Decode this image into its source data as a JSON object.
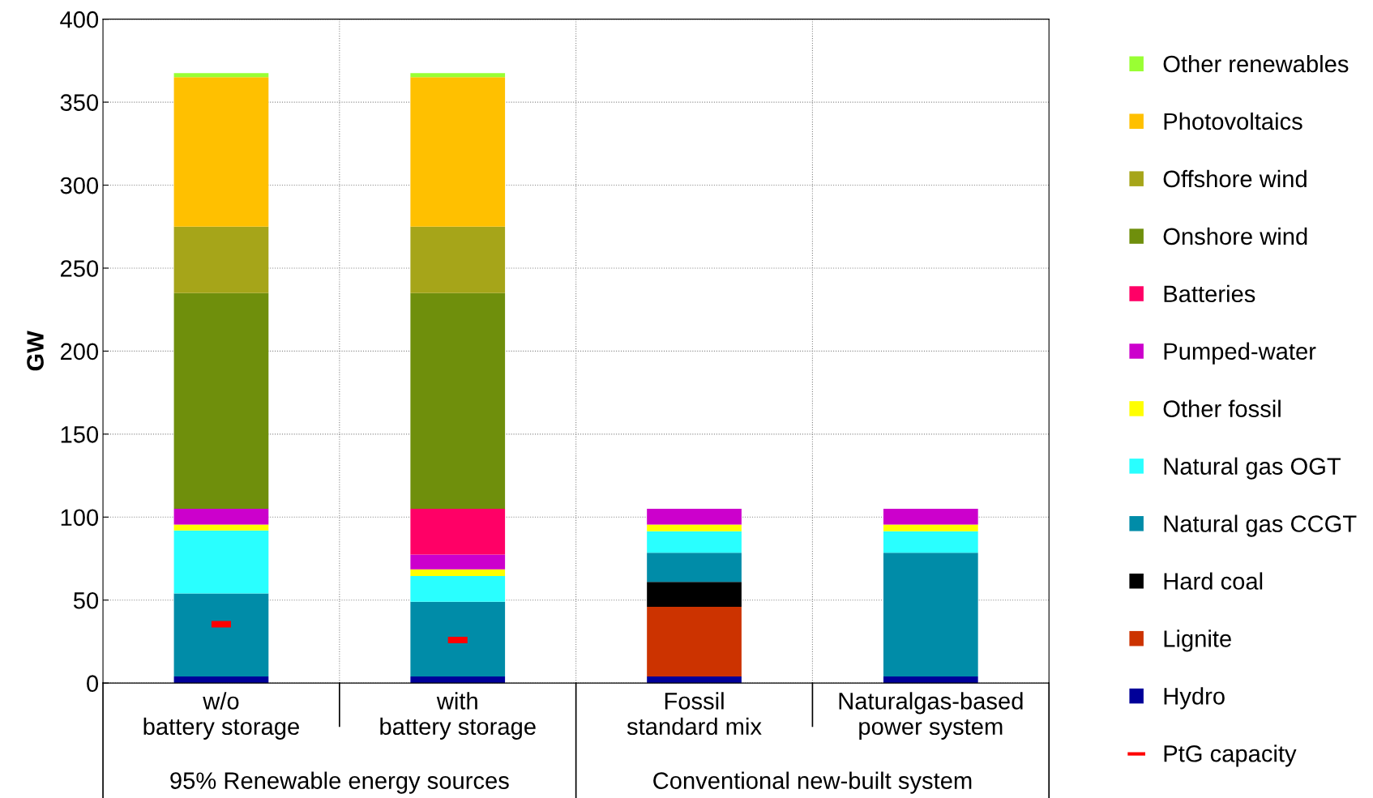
{
  "chart_data": {
    "type": "bar",
    "stacked": true,
    "ylabel": "GW",
    "categories": [
      "w/o\nbattery storage",
      "with\nbattery storage",
      "Fossil\nstandard mix",
      "Naturalgas-based\npower system"
    ],
    "ylim": [
      0,
      400
    ],
    "yticks": [
      0,
      50,
      100,
      150,
      200,
      250,
      300,
      350,
      400
    ],
    "grid": true,
    "legend": "right",
    "annotations": [
      "95% Renewable energy sources",
      "Conventional new-built system"
    ],
    "series": [
      {
        "name": "Hydro",
        "color": "#000099",
        "values": [
          4,
          4,
          4,
          4
        ]
      },
      {
        "name": "Lignite",
        "color": "#cc3300",
        "values": [
          null,
          null,
          42,
          null
        ]
      },
      {
        "name": "Hard coal",
        "color": "#000000",
        "values": [
          null,
          null,
          15,
          null
        ]
      },
      {
        "name": "Natural gas CCGT",
        "color": "#008ca8",
        "values": [
          50,
          45,
          17.5,
          74.5
        ]
      },
      {
        "name": "Natural gas OGT",
        "color": "#29ffff",
        "values": [
          38,
          15.5,
          13,
          13
        ]
      },
      {
        "name": "Other fossil",
        "color": "#ffff00",
        "values": [
          3.5,
          4,
          4,
          4
        ]
      },
      {
        "name": "Pumped-water",
        "color": "#cc00cc",
        "values": [
          9.5,
          9,
          9.5,
          9.5
        ]
      },
      {
        "name": "Batteries",
        "color": "#ff0066",
        "values": [
          null,
          27.5,
          null,
          null
        ]
      },
      {
        "name": "Onshore wind",
        "color": "#6f8f0c",
        "values": [
          130,
          130,
          null,
          null
        ]
      },
      {
        "name": "Offshore wind",
        "color": "#a6a519",
        "values": [
          40,
          40,
          null,
          null
        ]
      },
      {
        "name": "Photovoltaics",
        "color": "#ffc000",
        "values": [
          90,
          90,
          null,
          null
        ]
      },
      {
        "name": "Other renewables",
        "color": "#99ff33",
        "values": [
          2.5,
          2.5,
          null,
          null
        ]
      },
      {
        "name": "PtG capacity",
        "type": "scatter",
        "color": "#ff0000",
        "values": [
          35.5,
          26,
          null,
          null
        ]
      }
    ]
  }
}
